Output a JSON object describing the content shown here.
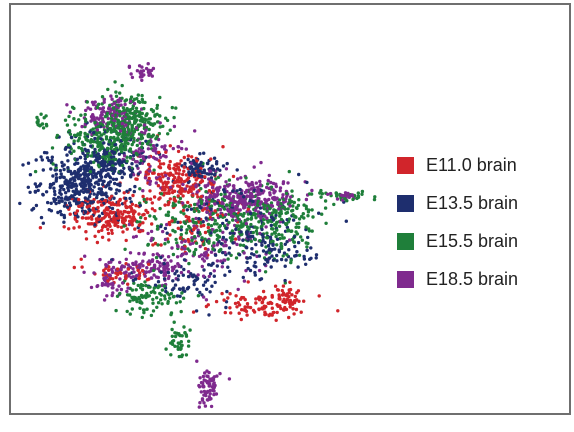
{
  "chart_data": {
    "type": "scatter",
    "title": "",
    "xlabel": "",
    "ylabel": "",
    "grid": false,
    "legend_position": "right",
    "series": [
      {
        "name": "E11.0 brain",
        "color": "#d1252b",
        "clusters": [
          {
            "cx": 110,
            "cy": 215,
            "sx": 20,
            "sy": 11,
            "n": 220
          },
          {
            "cx": 178,
            "cy": 180,
            "sx": 20,
            "sy": 13,
            "n": 190
          },
          {
            "cx": 122,
            "cy": 272,
            "sx": 18,
            "sy": 5,
            "n": 45
          },
          {
            "cx": 262,
            "cy": 306,
            "sx": 24,
            "sy": 6,
            "n": 90
          },
          {
            "cx": 285,
            "cy": 298,
            "sx": 8,
            "sy": 7,
            "n": 40
          },
          {
            "cx": 195,
            "cy": 222,
            "sx": 25,
            "sy": 20,
            "n": 60
          }
        ]
      },
      {
        "name": "E13.5 brain",
        "color": "#1e2e6e",
        "clusters": [
          {
            "cx": 80,
            "cy": 185,
            "sx": 23,
            "sy": 17,
            "n": 380
          },
          {
            "cx": 110,
            "cy": 158,
            "sx": 18,
            "sy": 12,
            "n": 160
          },
          {
            "cx": 200,
            "cy": 168,
            "sx": 10,
            "sy": 6,
            "n": 80
          },
          {
            "cx": 190,
            "cy": 280,
            "sx": 22,
            "sy": 12,
            "n": 70
          },
          {
            "cx": 270,
            "cy": 250,
            "sx": 18,
            "sy": 11,
            "n": 70
          },
          {
            "cx": 232,
            "cy": 228,
            "sx": 40,
            "sy": 25,
            "n": 130
          }
        ]
      },
      {
        "name": "E15.5 brain",
        "color": "#1f7f3a",
        "clusters": [
          {
            "cx": 110,
            "cy": 140,
            "sx": 22,
            "sy": 15,
            "n": 280
          },
          {
            "cx": 132,
            "cy": 118,
            "sx": 16,
            "sy": 12,
            "n": 170
          },
          {
            "cx": 210,
            "cy": 220,
            "sx": 35,
            "sy": 19,
            "n": 260
          },
          {
            "cx": 278,
            "cy": 222,
            "sx": 20,
            "sy": 17,
            "n": 180
          },
          {
            "cx": 152,
            "cy": 298,
            "sx": 18,
            "sy": 9,
            "n": 90
          },
          {
            "cx": 178,
            "cy": 342,
            "sx": 5,
            "sy": 10,
            "n": 40
          },
          {
            "cx": 340,
            "cy": 197,
            "sx": 14,
            "sy": 3,
            "n": 30
          },
          {
            "cx": 42,
            "cy": 122,
            "sx": 4,
            "sy": 4,
            "n": 15
          }
        ]
      },
      {
        "name": "E18.5 brain",
        "color": "#7f2a8e",
        "clusters": [
          {
            "cx": 245,
            "cy": 197,
            "sx": 26,
            "sy": 11,
            "n": 300
          },
          {
            "cx": 108,
            "cy": 115,
            "sx": 15,
            "sy": 9,
            "n": 110
          },
          {
            "cx": 150,
            "cy": 155,
            "sx": 14,
            "sy": 14,
            "n": 90
          },
          {
            "cx": 145,
            "cy": 268,
            "sx": 25,
            "sy": 6,
            "n": 110
          },
          {
            "cx": 110,
            "cy": 283,
            "sx": 8,
            "sy": 10,
            "n": 40
          },
          {
            "cx": 208,
            "cy": 388,
            "sx": 5,
            "sy": 10,
            "n": 70
          },
          {
            "cx": 146,
            "cy": 71,
            "sx": 6,
            "sy": 4,
            "n": 30
          },
          {
            "cx": 343,
            "cy": 196,
            "sx": 8,
            "sy": 3,
            "n": 20
          },
          {
            "cx": 200,
            "cy": 245,
            "sx": 35,
            "sy": 20,
            "n": 120
          }
        ]
      }
    ]
  }
}
